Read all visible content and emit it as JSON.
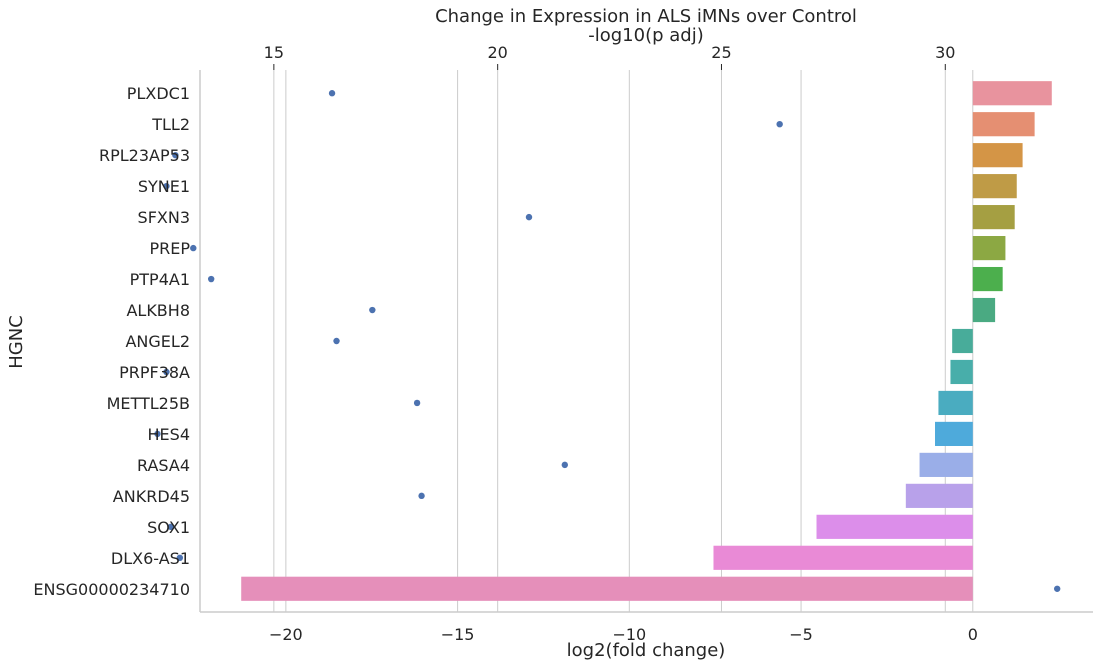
{
  "chart_data": {
    "type": "bar",
    "orientation": "horizontal",
    "title": "Change in Expression in ALS iMNs over Control",
    "xlabel": "log2(fold change)",
    "ylabel": "HGNC",
    "secondary_xlabel": "-log10(p adj)",
    "xlim": [
      -22.5,
      3.5
    ],
    "x_ticks": [
      -20,
      -15,
      -10,
      -5,
      0
    ],
    "secondary_xlim": [
      13.35,
      33.3
    ],
    "secondary_x_ticks": [
      15,
      20,
      25,
      30
    ],
    "grid": "vertical",
    "categories": [
      "PLXDC1",
      "TLL2",
      "RPL23AP53",
      "SYNE1",
      "SFXN3",
      "PREP",
      "PTP4A1",
      "ALKBH8",
      "ANGEL2",
      "PRPF38A",
      "METTL25B",
      "HES4",
      "RASA4",
      "ANKRD45",
      "SOX1",
      "DLX6-AS1",
      "ENSG00000234710"
    ],
    "series": [
      {
        "type": "bar",
        "axis": "bottom",
        "values": [
          2.3,
          1.8,
          1.45,
          1.28,
          1.22,
          0.95,
          0.87,
          0.65,
          -0.6,
          -0.65,
          -1.0,
          -1.1,
          -1.55,
          -1.95,
          -4.55,
          -7.55,
          -21.3
        ]
      },
      {
        "type": "scatter",
        "axis": "top",
        "values": [
          16.3,
          26.3,
          12.8,
          12.6,
          20.7,
          13.2,
          13.6,
          17.2,
          16.4,
          12.6,
          18.2,
          12.4,
          21.5,
          18.3,
          12.7,
          12.9,
          32.5
        ]
      }
    ],
    "colors": {
      "bars": [
        "#e8939e",
        "#e58f72",
        "#d49546",
        "#bf9b46",
        "#a59f42",
        "#8ca843",
        "#4caf4d",
        "#4aaa82",
        "#48ac9a",
        "#48aeaa",
        "#4aacc0",
        "#4eaadb",
        "#9aaee8",
        "#b8a1ea",
        "#dc8eea",
        "#e98ad6",
        "#e58fba"
      ],
      "points": "#4c72b0",
      "grid": "#cccccc",
      "spine": "#cccccc"
    }
  }
}
